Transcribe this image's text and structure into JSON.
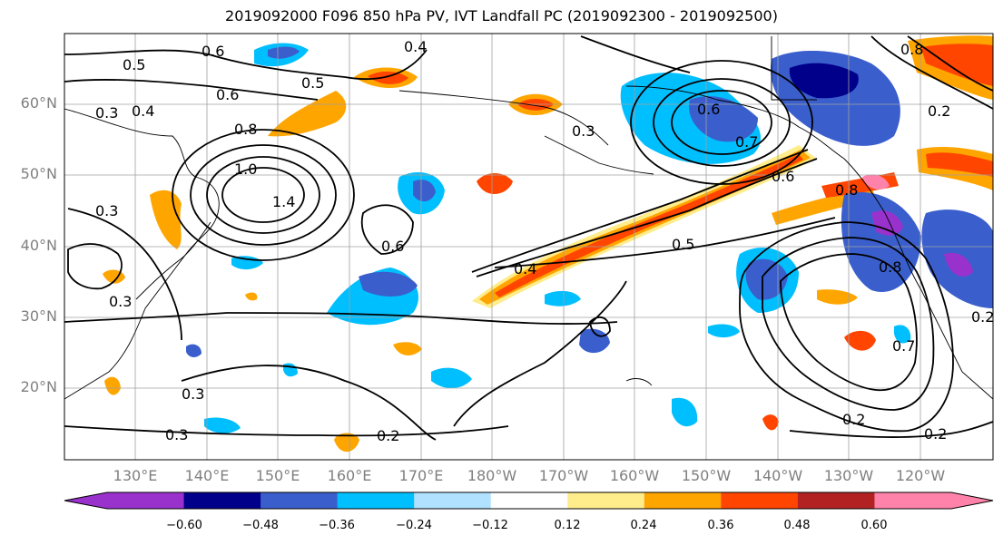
{
  "title": "2019092000 F096 850 hPa PV, IVT Landfall PC (2019092300 - 2019092500)",
  "lat_labels": [
    "60°N",
    "50°N",
    "40°N",
    "30°N",
    "20°N"
  ],
  "lon_labels": [
    "130°E",
    "140°E",
    "150°E",
    "160°E",
    "170°E",
    "180°W",
    "170°W",
    "160°W",
    "150°W",
    "140°W",
    "130°W",
    "120°W"
  ],
  "contour_labels": [
    "0.6",
    "0.4",
    "0.5",
    "0.5",
    "0.6",
    "0.4",
    "0.8",
    "1.0",
    "1.4",
    "0.3",
    "0.3",
    "0.6",
    "0.3",
    "0.4",
    "0.5",
    "0.3",
    "0.6",
    "0.7",
    "0.6",
    "0.8",
    "0.8",
    "0.7",
    "0.2",
    "0.2",
    "0.2",
    "0.3",
    "0.3",
    "0.2",
    "0.8",
    "0.2"
  ],
  "colorbar": {
    "colors": [
      "#9932cc",
      "#00008b",
      "#3a5fcd",
      "#00bfff",
      "#b0e2ff",
      "#ffffff",
      "#ffec8b",
      "#ffa500",
      "#ff4500",
      "#b22222",
      "#ff82ab"
    ],
    "tick_labels": [
      "−0.60",
      "−0.48",
      "−0.36",
      "−0.24",
      "−0.12",
      "0.12",
      "0.24",
      "0.36",
      "0.48",
      "0.60"
    ]
  },
  "colors": {
    "coast": "#000000",
    "grid": "#a0a0a0",
    "label": "#7f7f7f"
  }
}
